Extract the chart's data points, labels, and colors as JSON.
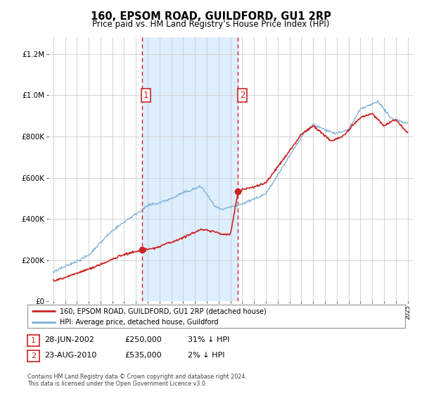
{
  "title": "160, EPSOM ROAD, GUILDFORD, GU1 2RP",
  "subtitle": "Price paid vs. HM Land Registry’s House Price Index (HPI)",
  "title_fontsize": 10.5,
  "subtitle_fontsize": 8.5,
  "hpi_color": "#7aaed6",
  "price_color": "#cc2222",
  "shaded_region_color": "#ddeeff",
  "background_color": "#ffffff",
  "grid_color": "#cccccc",
  "marker1_date": 2002.49,
  "marker1_price": 250000,
  "marker2_date": 2010.64,
  "marker2_price": 535000,
  "xmin": 1994.6,
  "xmax": 2025.5,
  "ymin": 0,
  "ymax": 1280000,
  "yticks": [
    0,
    200000,
    400000,
    600000,
    800000,
    1000000,
    1200000
  ],
  "legend_entry1": "160, EPSOM ROAD, GUILDFORD, GU1 2RP (detached house)",
  "legend_entry2": "HPI: Average price, detached house, Guildford",
  "table_row1": [
    "1",
    "28-JUN-2002",
    "£250,000",
    "31% ↓ HPI"
  ],
  "table_row2": [
    "2",
    "23-AUG-2010",
    "£535,000",
    "2% ↓ HPI"
  ],
  "footnote1": "Contains HM Land Registry data © Crown copyright and database right 2024.",
  "footnote2": "This data is licensed under the Open Government Licence v3.0."
}
